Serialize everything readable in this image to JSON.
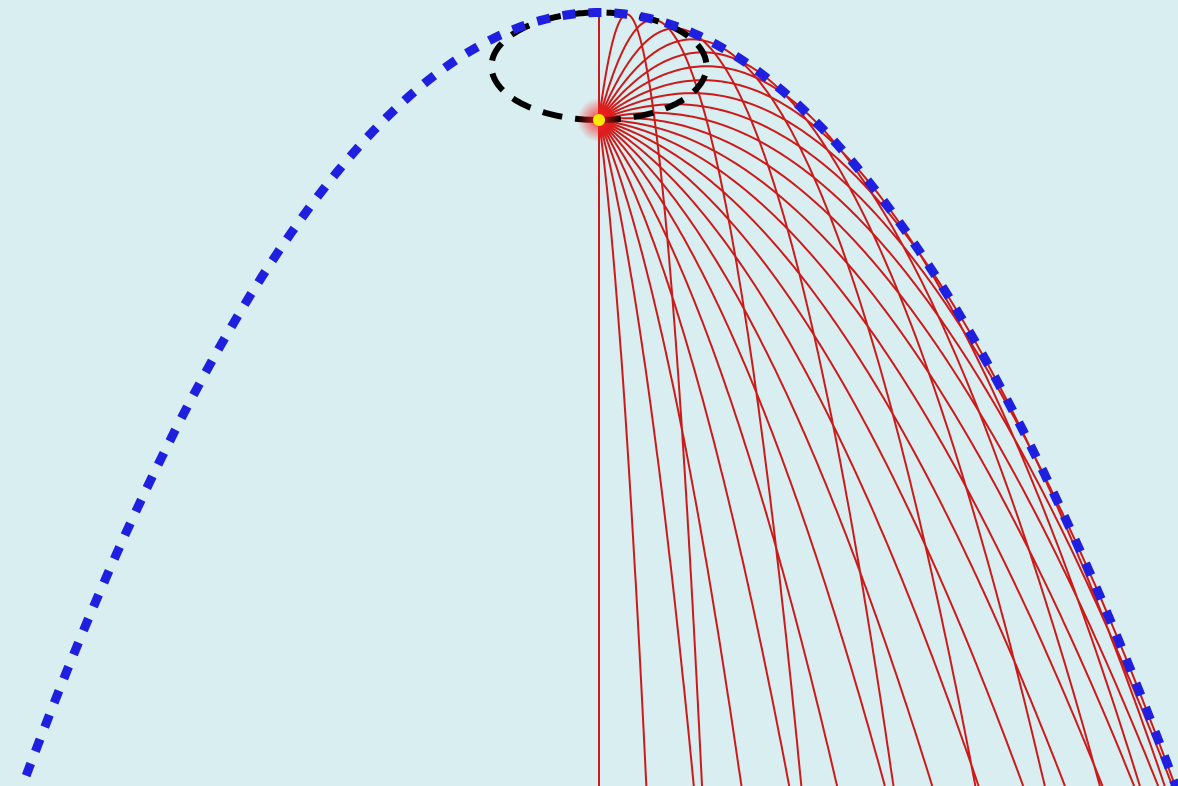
{
  "figure": {
    "background_color": "#d8eef0",
    "trajectory_color": "#cc1a1a",
    "envelope_color": "#1f1fe0",
    "apex_locus_color": "#000000",
    "launch_point_color": "#ffe800",
    "launch_glow_color": "#ff2020"
  },
  "chart_data": {
    "type": "diagram",
    "description_kind": "projectile trajectories from one launch point with envelope",
    "launch_speed": 1,
    "gravity": 1,
    "launch_angles_deg": [
      -90,
      -82.5,
      -75,
      -67.5,
      -60,
      -52.5,
      -45,
      -37.5,
      -30,
      -22.5,
      -15,
      -7.5,
      0,
      7.5,
      15,
      22.5,
      30,
      37.5,
      45,
      52.5,
      60,
      67.5,
      75,
      82.5,
      90
    ],
    "trajectory_count": 25,
    "curves": [
      "trajectories",
      "envelope-parabola",
      "apex-locus"
    ]
  }
}
